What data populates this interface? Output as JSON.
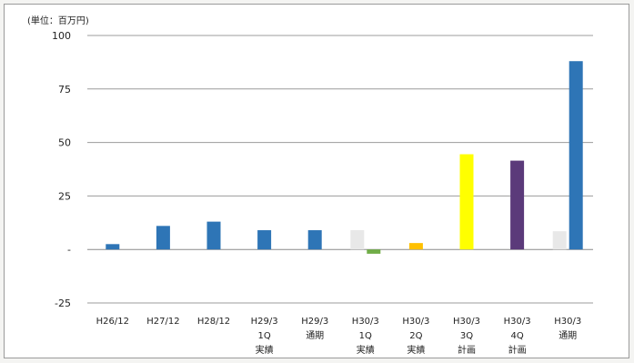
{
  "unit_label": "(単位：百万円)",
  "chart_data": {
    "type": "bar",
    "ylim": [
      -25,
      100
    ],
    "yticks": [
      {
        "value": 100,
        "label": "100"
      },
      {
        "value": 75,
        "label": "75"
      },
      {
        "value": 50,
        "label": "50"
      },
      {
        "value": 25,
        "label": "25"
      },
      {
        "value": 0,
        "label": "-"
      },
      {
        "value": -25,
        "label": "-25"
      }
    ],
    "grid": true,
    "legend": "none",
    "categories": [
      [
        "H26/12"
      ],
      [
        "H27/12"
      ],
      [
        "H28/12"
      ],
      [
        "H29/3",
        "1Q",
        "実績"
      ],
      [
        "H29/3",
        "通期"
      ],
      [
        "H30/3",
        "1Q",
        "実績"
      ],
      [
        "H30/3",
        "2Q",
        "実績"
      ],
      [
        "H30/3",
        "3Q",
        "計画"
      ],
      [
        "H30/3",
        "4Q",
        "計画"
      ],
      [
        "H30/3",
        "通期"
      ]
    ],
    "bars": [
      [
        {
          "value": 2.5,
          "color": "#2e75b6",
          "slot": "mid"
        }
      ],
      [
        {
          "value": 11,
          "color": "#2e75b6",
          "slot": "mid"
        }
      ],
      [
        {
          "value": 13,
          "color": "#2e75b6",
          "slot": "mid"
        }
      ],
      [
        {
          "value": 9,
          "color": "#2e75b6",
          "slot": "mid"
        }
      ],
      [
        {
          "value": 9,
          "color": "#2e75b6",
          "slot": "mid"
        }
      ],
      [
        {
          "value": 9,
          "color": "#e8e8e8",
          "slot": "left"
        },
        {
          "value": -2,
          "color": "#70ad47",
          "slot": "right"
        }
      ],
      [
        {
          "value": 3,
          "color": "#ffc000",
          "slot": "mid"
        }
      ],
      [
        {
          "value": 44.5,
          "color": "#ffff00",
          "slot": "mid"
        }
      ],
      [
        {
          "value": 41.5,
          "color": "#5b3a7a",
          "slot": "mid"
        }
      ],
      [
        {
          "value": 8.5,
          "color": "#e8e8e8",
          "slot": "left"
        },
        {
          "value": 88,
          "color": "#2e75b6",
          "slot": "right"
        }
      ]
    ]
  }
}
